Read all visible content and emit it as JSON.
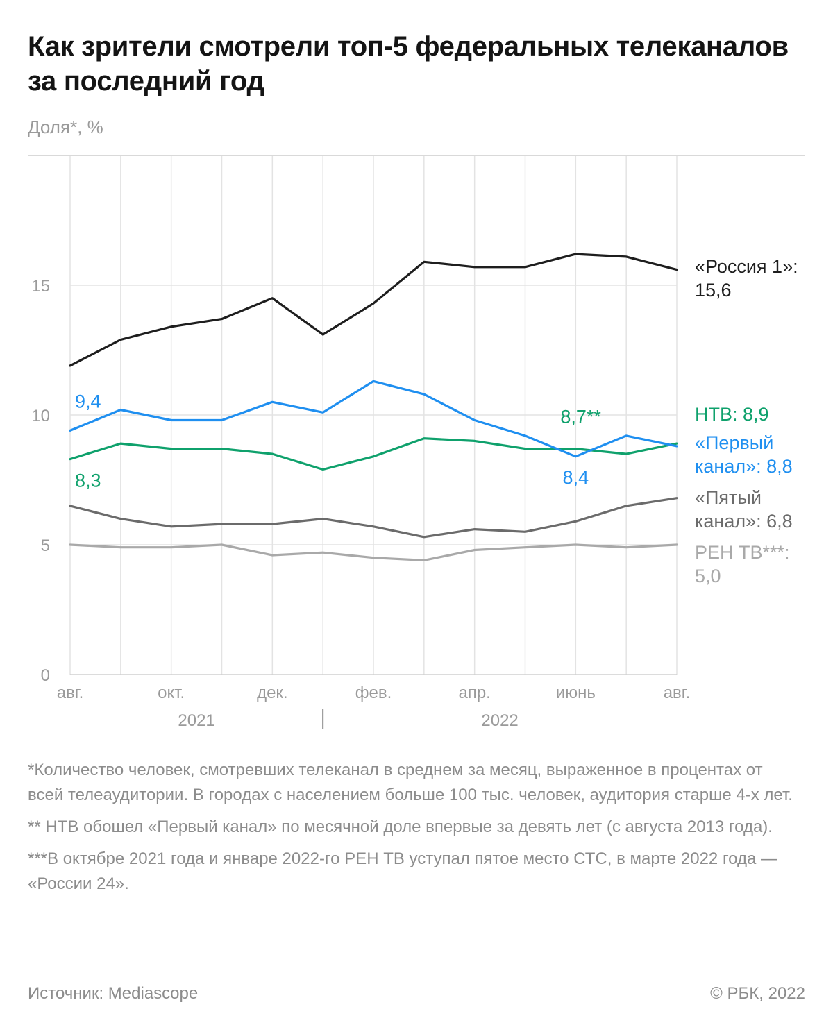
{
  "title": "Как зрители смотрели топ-5 федеральных телеканалов за последний год",
  "subtitle": "Доля*, %",
  "chart_data": {
    "type": "line",
    "ylabel": "Доля*, %",
    "ylim": [
      0,
      18
    ],
    "yticks": [
      0,
      5,
      10,
      15
    ],
    "yticks_labels": [
      "0",
      "5",
      "10",
      "15"
    ],
    "months": 13,
    "x_tick_labels": [
      {
        "index": 0,
        "label": "авг."
      },
      {
        "index": 2,
        "label": "окт."
      },
      {
        "index": 4,
        "label": "дек."
      },
      {
        "index": 6,
        "label": "фев."
      },
      {
        "index": 8,
        "label": "апр."
      },
      {
        "index": 10,
        "label": "июнь"
      },
      {
        "index": 12,
        "label": "авг."
      }
    ],
    "years": [
      {
        "label": "2021",
        "center_index": 2.5
      },
      {
        "label": "2022",
        "center_index": 8.5
      }
    ],
    "year_separator_index": 5,
    "grid": true,
    "series": [
      {
        "key": "russia1",
        "color": "#1e1e1e",
        "values": [
          11.9,
          12.9,
          13.4,
          13.7,
          14.5,
          13.1,
          14.3,
          15.9,
          15.7,
          15.7,
          16.2,
          16.1,
          15.6
        ],
        "label_lines": [
          "«Россия 1»:",
          "15,6"
        ]
      },
      {
        "key": "perviy",
        "color": "#1f8ff0",
        "values": [
          9.4,
          10.2,
          9.8,
          9.8,
          10.5,
          10.1,
          11.3,
          10.8,
          9.8,
          9.2,
          8.4,
          9.2,
          8.8
        ],
        "label_lines": [
          "«Первый",
          "канал»: 8,8"
        ]
      },
      {
        "key": "ntv",
        "color": "#0fa16c",
        "values": [
          8.3,
          8.9,
          8.7,
          8.7,
          8.5,
          7.9,
          8.4,
          9.1,
          9.0,
          8.7,
          8.7,
          8.5,
          8.9
        ],
        "label_lines": [
          "НТВ: 8,9"
        ]
      },
      {
        "key": "pyatyi",
        "color": "#6b6b6b",
        "values": [
          6.5,
          6.0,
          5.7,
          5.8,
          5.8,
          6.0,
          5.7,
          5.3,
          5.6,
          5.5,
          5.9,
          6.5,
          6.8
        ],
        "label_lines": [
          "«Пятый",
          "канал»: 6,8"
        ]
      },
      {
        "key": "ren",
        "color": "#a9a9a9",
        "values": [
          5.0,
          4.9,
          4.9,
          5.0,
          4.6,
          4.7,
          4.5,
          4.4,
          4.8,
          4.9,
          5.0,
          4.9,
          5.0
        ],
        "label_lines": [
          "РЕН ТВ***:",
          "5,0"
        ]
      }
    ],
    "annotations": [
      {
        "text": "9,4",
        "series": "perviy",
        "index": 0
      },
      {
        "text": "8,3",
        "series": "ntv",
        "index": 0
      },
      {
        "text": "8,7**",
        "series": "ntv",
        "index": 10
      },
      {
        "text": "8,4",
        "series": "perviy",
        "index": 10
      }
    ]
  },
  "notes": [
    "*Количество человек, смотревших телеканал в среднем за месяц, выраженное в процентах от всей телеаудитории. В городах с населением больше 100 тыс. человек, аудитория старше 4-х лет.",
    "** НТВ обошел «Первый канал» по месячной доле впервые за девять лет (с августа 2013 года).",
    "***В октябре 2021 года и январе 2022-го РЕН ТВ уступал пятое место СТС, в марте 2022 года — «России 24»."
  ],
  "source": "Источник: Mediascope",
  "copyright": "© РБК, 2022"
}
